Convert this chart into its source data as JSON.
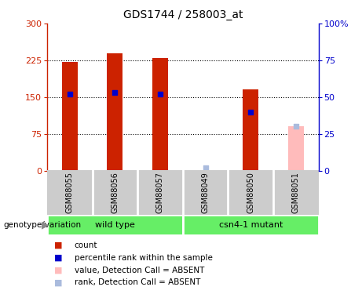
{
  "title": "GDS1744 / 258003_at",
  "samples": [
    "GSM88055",
    "GSM88056",
    "GSM88057",
    "GSM88049",
    "GSM88050",
    "GSM88051"
  ],
  "groups": [
    {
      "label": "wild type",
      "indices": [
        0,
        1,
        2
      ]
    },
    {
      "label": "csn4-1 mutant",
      "indices": [
        3,
        4,
        5
      ]
    }
  ],
  "counts": [
    222,
    240,
    230,
    0,
    165,
    90
  ],
  "ranks": [
    52,
    53,
    52,
    2,
    40,
    30
  ],
  "absent": [
    false,
    false,
    false,
    true,
    false,
    true
  ],
  "ylim_left": [
    0,
    300
  ],
  "ylim_right": [
    0,
    100
  ],
  "yticks_left": [
    0,
    75,
    150,
    225,
    300
  ],
  "yticks_right": [
    0,
    25,
    50,
    75,
    100
  ],
  "color_bar_present": "#cc2200",
  "color_bar_absent": "#ffbbbb",
  "color_rank_present": "#0000cc",
  "color_rank_absent": "#aabbdd",
  "color_group_bg": "#66ee66",
  "color_sample_bg": "#cccccc",
  "bar_width": 0.35,
  "legend_items": [
    {
      "color": "#cc2200",
      "label": "count"
    },
    {
      "color": "#0000cc",
      "label": "percentile rank within the sample"
    },
    {
      "color": "#ffbbbb",
      "label": "value, Detection Call = ABSENT"
    },
    {
      "color": "#aabbdd",
      "label": "rank, Detection Call = ABSENT"
    }
  ]
}
